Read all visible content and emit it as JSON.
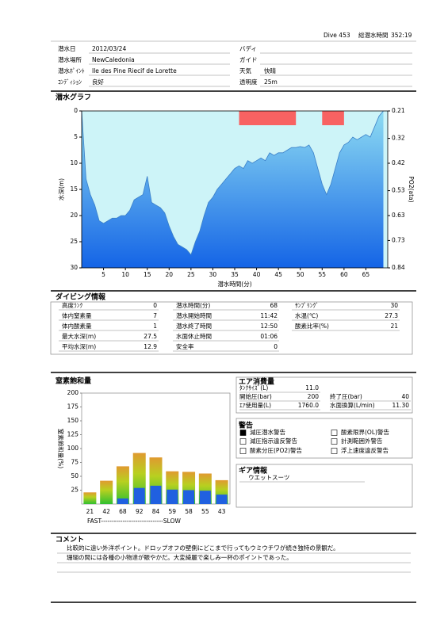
{
  "header": {
    "dive": "Dive 453",
    "total_label": "総潜水時間",
    "total": "352:19"
  },
  "info": {
    "left": [
      {
        "label": "潜水日",
        "value": "2012/03/24"
      },
      {
        "label": "潜水場所",
        "value": "NewCaledonia"
      },
      {
        "label": "潜水ﾎﾟｲﾝﾄ",
        "value": "Ile des Pine Riecif de Lorette"
      },
      {
        "label": "ｺﾝﾃﾞｨｼｮﾝ",
        "value": "良好"
      }
    ],
    "right": [
      {
        "label": "バディ"
      },
      {
        "label": "ガイド"
      },
      {
        "label": "天気",
        "value": "快晴"
      },
      {
        "label": "透明度",
        "value": "25m"
      }
    ]
  },
  "chart_data": [
    {
      "type": "area",
      "title": "潜水グラフ",
      "xlabel": "潜水時間(分)",
      "ylabel": "水深(m)",
      "y2label": "PO2(ata)",
      "x": [
        0,
        1,
        2,
        3,
        4,
        5,
        6,
        7,
        8,
        9,
        10,
        11,
        12,
        13,
        14,
        15,
        16,
        17,
        18,
        19,
        20,
        21,
        22,
        23,
        24,
        25,
        26,
        27,
        28,
        29,
        30,
        31,
        32,
        33,
        34,
        35,
        36,
        37,
        38,
        39,
        40,
        41,
        42,
        43,
        44,
        45,
        46,
        47,
        48,
        49,
        50,
        51,
        52,
        53,
        54,
        55,
        56,
        57,
        58,
        59,
        60,
        61,
        62,
        63,
        64,
        65,
        66,
        67,
        68,
        69
      ],
      "values": [
        0,
        13,
        16,
        18,
        21,
        21.5,
        21,
        20.5,
        20.5,
        20,
        20,
        19,
        17,
        16.5,
        16,
        12.5,
        17.5,
        18,
        18.5,
        19.5,
        22,
        24,
        25.5,
        26,
        26.5,
        27.5,
        25,
        23,
        20,
        17.5,
        16.5,
        15,
        14,
        13,
        12,
        11,
        10.5,
        11,
        9.5,
        10,
        9.5,
        9,
        9.5,
        8,
        8.5,
        8,
        8,
        7.5,
        7,
        7,
        6.8,
        7,
        6.5,
        8,
        11,
        14,
        16,
        14,
        11,
        8,
        6.5,
        6,
        5,
        5.5,
        5,
        4.5,
        5,
        3,
        1,
        0
      ],
      "xlim": [
        0,
        70
      ],
      "xticks": [
        5,
        10,
        15,
        20,
        25,
        30,
        35,
        40,
        45,
        50,
        55,
        60,
        65
      ],
      "ylim": [
        30,
        0
      ],
      "yticks": [
        0,
        5,
        10,
        15,
        20,
        25,
        30
      ],
      "y2lim": [
        0.84,
        0.21
      ],
      "y2ticks": [
        0.21,
        0.32,
        0.42,
        0.53,
        0.63,
        0.73,
        0.84
      ],
      "colors": {
        "background": "#cdf4f8",
        "top": "#8edcf2",
        "bottom": "#1464e6"
      },
      "alerts": {
        "color": "#f86262",
        "ranges": [
          [
            36,
            49
          ],
          [
            55,
            60
          ]
        ]
      }
    },
    {
      "type": "bar",
      "title": "窒素飽和量",
      "ylabel": "窒素飽和量(%)",
      "x_caption": "FAST-----------------------------SLOW",
      "ylim": [
        0,
        200
      ],
      "yticks": [
        25,
        50,
        75,
        100,
        125,
        150,
        175,
        200
      ],
      "series": [
        {
          "colors": {
            "top": "#e09a30",
            "middle": "#b8d020",
            "bottom": "#30c030"
          },
          "values": [
            21,
            42,
            68,
            92,
            84,
            59,
            58,
            55,
            43
          ]
        },
        {
          "color": "#2060e0",
          "values": [
            0,
            0,
            10,
            29,
            33,
            26,
            25,
            24,
            17
          ]
        }
      ]
    }
  ],
  "dive_info": {
    "title": "ダイビング情報",
    "columns": [
      [
        {
          "label": "高度ﾗﾝｸ",
          "value": "0"
        },
        {
          "label": "体内窒素量",
          "value": "7"
        },
        {
          "label": "体内酸素量",
          "value": "1"
        },
        {
          "label": "最大水深(m)",
          "value": "27.5"
        },
        {
          "label": "平均水深(m)",
          "value": "12.9"
        }
      ],
      [
        {
          "label": "潜水時間(分)",
          "value": "68"
        },
        {
          "label": "潜水開始時間",
          "value": "11:42"
        },
        {
          "label": "潜水終了時間",
          "value": "12:50"
        },
        {
          "label": "水面休止時間",
          "value": "01:06"
        },
        {
          "label": "安全率",
          "value": "0"
        }
      ],
      [
        {
          "label": "ｻﾝﾌﾟﾘﾝｸﾞ",
          "value": "30"
        },
        {
          "label": "水温(℃)",
          "value": "27.3"
        },
        {
          "label": "酸素比率(%)",
          "value": "21"
        }
      ]
    ]
  },
  "air": {
    "title": "エア消費量",
    "rows": [
      [
        {
          "label": "ﾀﾝｸｻｲｽﾞ(L)",
          "value": "11.0"
        }
      ],
      [
        {
          "label": "開始圧(bar)",
          "value": "200"
        },
        {
          "label": "終了圧(bar)",
          "value": "40"
        }
      ],
      [
        {
          "label": "ｴｱ使用量(L)",
          "value": "1760.0"
        },
        {
          "label": "水面換算(L/min)",
          "value": "11.30"
        }
      ]
    ]
  },
  "warnings": {
    "title": "警告",
    "items": [
      {
        "label": "減圧潜水警告",
        "checked": true
      },
      {
        "label": "酸素限界(OL)警告",
        "checked": false
      },
      {
        "label": "減圧指示違反警告",
        "checked": false
      },
      {
        "label": "計測範囲外警告",
        "checked": false
      },
      {
        "label": "酸素分圧(PO2)警告",
        "checked": false
      },
      {
        "label": "浮上速度違反警告",
        "checked": false
      }
    ]
  },
  "gear": {
    "title": "ギア情報",
    "items": [
      "ウエットスーツ"
    ]
  },
  "comment": {
    "title": "コメント",
    "lines": [
      "比較的に遠い外洋ポイント。ドロップオフの壁側にどこまで行ってもウミウチワが続き独特の景観だ。",
      "珊瑚の間には各種の小物達が賑やかだ。大変綺麗で楽しみ一杯のポイントであった。"
    ]
  }
}
